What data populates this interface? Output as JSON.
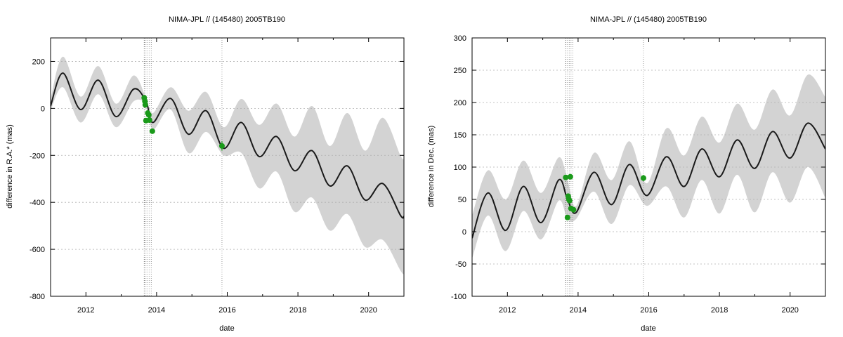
{
  "chart_data": [
    {
      "type": "line",
      "title": "NIMA-JPL // (145480) 2005TB190",
      "xlabel": "date",
      "ylabel": "difference in R.A.* (mas)",
      "xlim": [
        2011.0,
        2021.0
      ],
      "ylim": [
        -800,
        300
      ],
      "xticks": [
        2012,
        2014,
        2016,
        2018,
        2020
      ],
      "yticks": [
        -800,
        -600,
        -400,
        -200,
        0,
        200
      ],
      "grid": "dotted",
      "colors": {
        "band": "#d3d3d3",
        "curve": "#1a1a1a",
        "points": "#1a9a1a",
        "vlines": "#888888"
      },
      "obs_dates": [
        2013.65,
        2013.7,
        2013.75,
        2013.8,
        2013.85,
        2015.85
      ],
      "model": {
        "x": [
          2011.0,
          2011.35,
          2011.85,
          2012.35,
          2012.85,
          2013.35,
          2013.7,
          2013.9,
          2014.4,
          2014.9,
          2015.4,
          2015.9,
          2016.4,
          2016.9,
          2017.4,
          2017.9,
          2018.4,
          2018.9,
          2019.4,
          2019.9,
          2020.4,
          2020.9,
          2021.0
        ],
        "y": [
          10,
          150,
          -5,
          120,
          -35,
          82,
          30,
          -60,
          42,
          -110,
          -10,
          -170,
          -60,
          -205,
          -120,
          -265,
          -180,
          -330,
          -245,
          -390,
          -320,
          -455,
          -460
        ]
      },
      "band": {
        "x": [
          2011.0,
          2011.35,
          2011.85,
          2012.35,
          2012.85,
          2013.35,
          2013.7,
          2013.9,
          2014.4,
          2014.9,
          2015.4,
          2015.9,
          2016.4,
          2016.9,
          2017.4,
          2017.9,
          2018.4,
          2018.9,
          2019.4,
          2019.9,
          2020.4,
          2020.9,
          2021.0
        ],
        "upper": [
          40,
          220,
          50,
          180,
          20,
          140,
          45,
          -20,
          90,
          -10,
          70,
          -80,
          40,
          -70,
          20,
          -120,
          10,
          -160,
          -20,
          -180,
          -40,
          -200,
          -215
        ],
        "lower": [
          -10,
          90,
          -60,
          60,
          -80,
          30,
          15,
          -90,
          -5,
          -190,
          -100,
          -200,
          -190,
          -340,
          -270,
          -440,
          -380,
          -520,
          -450,
          -590,
          -560,
          -690,
          -705
        ]
      },
      "points": [
        {
          "x": 2013.65,
          "y": 45,
          "err": 8
        },
        {
          "x": 2013.67,
          "y": 30,
          "err": 8
        },
        {
          "x": 2013.68,
          "y": 15,
          "err": 8
        },
        {
          "x": 2013.7,
          "y": -52,
          "err": 8
        },
        {
          "x": 2013.75,
          "y": -20,
          "err": 8
        },
        {
          "x": 2013.78,
          "y": -28,
          "err": 8
        },
        {
          "x": 2013.8,
          "y": -50,
          "err": 8
        },
        {
          "x": 2013.88,
          "y": -97,
          "err": 8
        },
        {
          "x": 2015.85,
          "y": -160,
          "err": 20
        }
      ]
    },
    {
      "type": "line",
      "title": "NIMA-JPL // (145480) 2005TB190",
      "xlabel": "date",
      "ylabel": "difference in Dec. (mas)",
      "xlim": [
        2011.0,
        2021.0
      ],
      "ylim": [
        -100,
        300
      ],
      "xticks": [
        2012,
        2014,
        2016,
        2018,
        2020
      ],
      "yticks": [
        -100,
        -50,
        0,
        50,
        100,
        150,
        200,
        250,
        300
      ],
      "grid": "dotted",
      "colors": {
        "band": "#d3d3d3",
        "curve": "#1a1a1a",
        "points": "#1a9a1a",
        "vlines": "#888888"
      },
      "obs_dates": [
        2013.65,
        2013.7,
        2013.75,
        2013.8,
        2013.85,
        2015.85
      ],
      "model": {
        "x": [
          2011.0,
          2011.45,
          2011.95,
          2012.45,
          2012.95,
          2013.45,
          2013.7,
          2013.95,
          2014.45,
          2014.95,
          2015.45,
          2015.95,
          2016.5,
          2017.0,
          2017.5,
          2018.0,
          2018.5,
          2019.0,
          2019.5,
          2020.0,
          2020.5,
          2021.0
        ],
        "y": [
          -10,
          60,
          2,
          70,
          14,
          80,
          50,
          30,
          92,
          42,
          104,
          56,
          116,
          70,
          128,
          85,
          142,
          98,
          155,
          114,
          168,
          128
        ]
      },
      "band": {
        "x": [
          2011.0,
          2011.45,
          2011.95,
          2012.45,
          2012.95,
          2013.45,
          2013.7,
          2013.95,
          2014.45,
          2014.95,
          2015.45,
          2015.95,
          2016.5,
          2017.0,
          2017.5,
          2018.0,
          2018.5,
          2019.0,
          2019.5,
          2020.0,
          2020.5,
          2021.0
        ],
        "upper": [
          25,
          95,
          50,
          110,
          60,
          115,
          80,
          40,
          122,
          80,
          140,
          75,
          160,
          118,
          178,
          138,
          198,
          158,
          220,
          180,
          243,
          208
        ],
        "lower": [
          -42,
          25,
          -30,
          32,
          -12,
          48,
          20,
          20,
          62,
          12,
          72,
          40,
          70,
          22,
          80,
          28,
          88,
          30,
          92,
          45,
          100,
          52
        ]
      },
      "points": [
        {
          "x": 2013.65,
          "y": 84,
          "err": 4
        },
        {
          "x": 2013.7,
          "y": 22,
          "err": 4
        },
        {
          "x": 2013.72,
          "y": 55,
          "err": 4
        },
        {
          "x": 2013.74,
          "y": 50,
          "err": 4
        },
        {
          "x": 2013.76,
          "y": 48,
          "err": 4
        },
        {
          "x": 2013.78,
          "y": 85,
          "err": 4
        },
        {
          "x": 2013.8,
          "y": 36,
          "err": 4
        },
        {
          "x": 2013.87,
          "y": 34,
          "err": 4
        },
        {
          "x": 2015.85,
          "y": 83,
          "err": 5
        }
      ]
    }
  ]
}
